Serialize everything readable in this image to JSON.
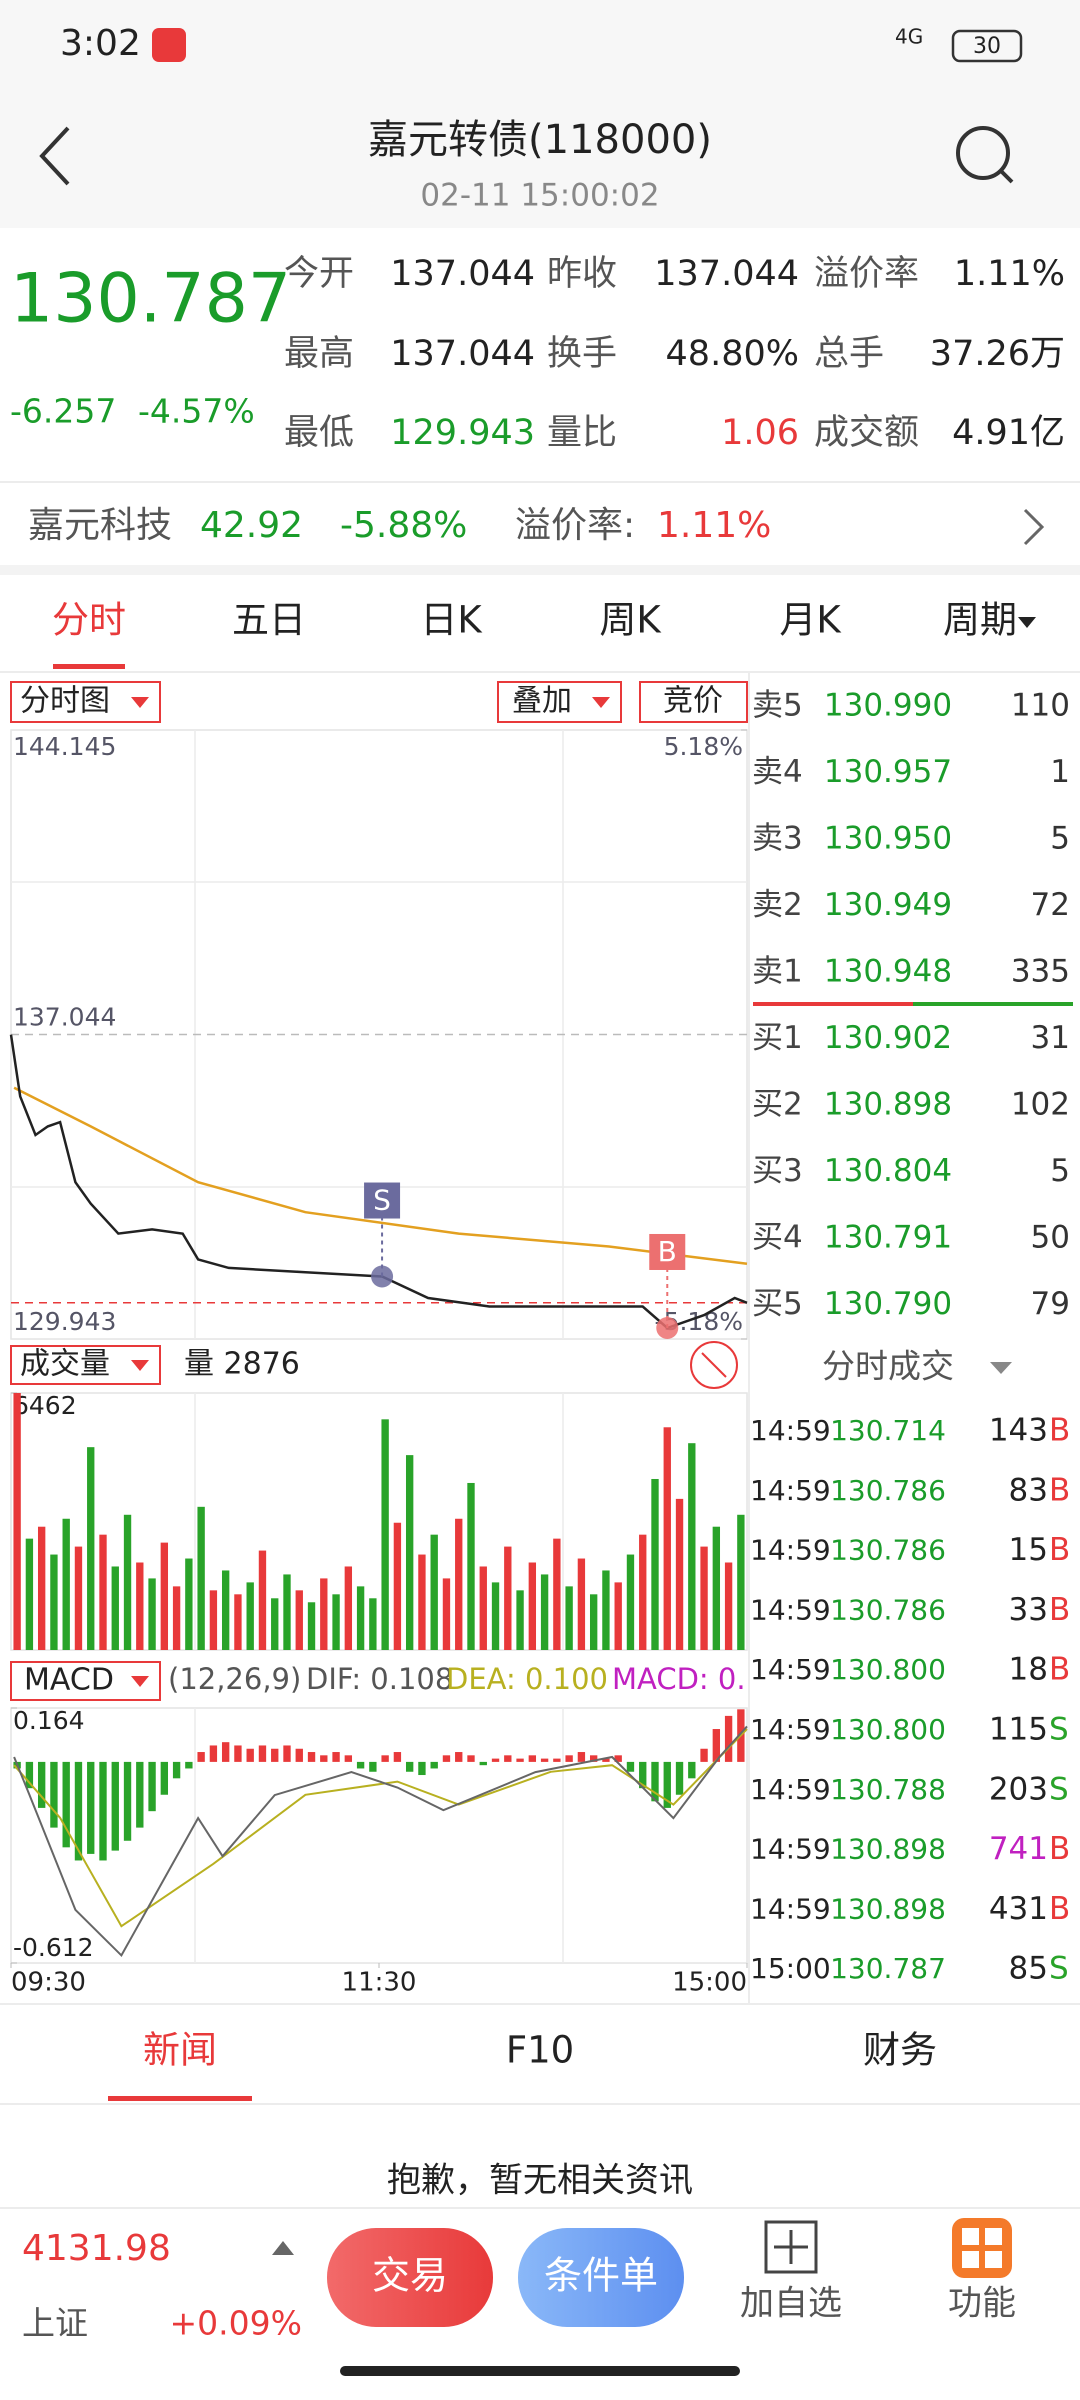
{
  "status_bar": {
    "time": "3:02",
    "network": "4G",
    "battery": "30"
  },
  "header": {
    "title": "嘉元转债(118000)",
    "subtitle": "02-11 15:00:02"
  },
  "quote": {
    "price": "130.787",
    "price_color": "#1a9c2a",
    "change": "-6.257",
    "change_pct": "-4.57%",
    "fields": [
      {
        "label": "今开",
        "value": "137.044",
        "color": "#222222"
      },
      {
        "label": "昨收",
        "value": "137.044",
        "color": "#222222"
      },
      {
        "label": "溢价率",
        "value": "1.11%",
        "color": "#222222"
      },
      {
        "label": "最高",
        "value": "137.044",
        "color": "#222222"
      },
      {
        "label": "换手",
        "value": "48.80%",
        "color": "#222222"
      },
      {
        "label": "总手",
        "value": "37.26万",
        "color": "#222222"
      },
      {
        "label": "最低",
        "value": "129.943",
        "color": "#1a9c2a"
      },
      {
        "label": "量比",
        "value": "1.06",
        "color": "#e8393a"
      },
      {
        "label": "成交额",
        "value": "4.91亿",
        "color": "#222222"
      }
    ]
  },
  "underlying": {
    "name": "嘉元科技",
    "price": "42.92",
    "change_pct": "-5.88%",
    "premium_label": "溢价率:",
    "premium": "1.11%"
  },
  "tabs": [
    "分时",
    "五日",
    "日K",
    "周K",
    "月K",
    "周期"
  ],
  "chart_controls": {
    "mode": "分时图",
    "overlay": "叠加",
    "auction": "竞价",
    "volume_label": "成交量",
    "volume_current": "量 2876",
    "macd_label": "MACD",
    "macd_params": "(12,26,9)",
    "dif": "DIF: 0.108",
    "dea": "DEA: 0.100",
    "macd": "MACD: 0."
  },
  "chart_data": [
    {
      "type": "line",
      "color": "#222222",
      "x": [
        0,
        3,
        8,
        12,
        16,
        21,
        26,
        35,
        46,
        56,
        61,
        71,
        96,
        121,
        136,
        156,
        181,
        206,
        214,
        226,
        236,
        240
      ],
      "values": [
        137.04,
        135.6,
        134.7,
        134.9,
        135.0,
        133.6,
        133.1,
        132.4,
        132.5,
        132.4,
        131.8,
        131.6,
        131.5,
        131.4,
        130.9,
        130.7,
        130.7,
        130.7,
        130.2,
        130.5,
        130.9,
        130.787
      ],
      "average": {
        "color": "#e3a020",
        "x": [
          1,
          26,
          61,
          96,
          146,
          195,
          240
        ],
        "values": [
          135.8,
          134.9,
          133.6,
          132.9,
          132.4,
          132.1,
          131.7
        ]
      },
      "reference_lines": [
        {
          "value": 130.787,
          "color": "#e8393a"
        }
      ],
      "annotations": [
        {
          "text": "S",
          "x": 121,
          "y": 131.4,
          "color": "#6b6b9e"
        },
        {
          "text": "B",
          "x": 214,
          "y": 130.2,
          "color": "#ec7070"
        }
      ],
      "xlim": [
        0,
        240
      ],
      "ylim": [
        129.943,
        144.145
      ],
      "yticks": [
        129.943,
        137.044,
        144.145
      ],
      "y2lim": [
        -5.18,
        5.18
      ],
      "y2ticks": [
        {
          "value": -5.18,
          "label": "-5.18%"
        },
        {
          "value": 5.18,
          "label": "5.18%"
        }
      ]
    },
    {
      "type": "bar",
      "x": [
        2,
        6,
        10,
        14,
        18,
        22,
        26,
        30,
        34,
        38,
        42,
        46,
        50,
        54,
        58,
        62,
        66,
        70,
        74,
        78,
        82,
        86,
        90,
        94,
        98,
        102,
        106,
        110,
        114,
        118,
        122,
        126,
        130,
        134,
        138,
        142,
        146,
        150,
        154,
        158,
        162,
        166,
        170,
        174,
        178,
        182,
        186,
        190,
        194,
        198,
        202,
        206,
        210,
        214,
        218,
        222,
        226,
        230,
        234,
        238
      ],
      "values": [
        6462,
        2800,
        3100,
        2400,
        3300,
        2600,
        5100,
        2900,
        2100,
        3400,
        2200,
        1800,
        2700,
        1600,
        2300,
        3600,
        1500,
        2000,
        1400,
        1700,
        2500,
        1300,
        1900,
        1500,
        1200,
        1800,
        1400,
        2100,
        1600,
        1300,
        5800,
        3200,
        4900,
        2400,
        2900,
        1800,
        3300,
        4200,
        2100,
        1700,
        2600,
        1500,
        2200,
        1900,
        2800,
        1600,
        2300,
        1400,
        2000,
        1700,
        2400,
        2900,
        4300,
        5600,
        3800,
        5200,
        2600,
        3100,
        2200,
        3400
      ],
      "colors": [
        "#e8393a",
        "#29a329",
        "#e8393a",
        "#29a329",
        "#29a329",
        "#e8393a",
        "#29a329",
        "#e8393a",
        "#29a329",
        "#29a329",
        "#e8393a",
        "#29a329",
        "#e8393a",
        "#e8393a",
        "#29a329",
        "#29a329",
        "#e8393a",
        "#29a329",
        "#e8393a",
        "#29a329",
        "#e8393a",
        "#29a329",
        "#29a329",
        "#e8393a",
        "#29a329",
        "#e8393a",
        "#29a329",
        "#e8393a",
        "#29a329",
        "#29a329",
        "#29a329",
        "#e8393a",
        "#29a329",
        "#e8393a",
        "#29a329",
        "#e8393a",
        "#e8393a",
        "#29a329",
        "#e8393a",
        "#29a329",
        "#e8393a",
        "#29a329",
        "#e8393a",
        "#29a329",
        "#e8393a",
        "#29a329",
        "#e8393a",
        "#29a329",
        "#29a329",
        "#e8393a",
        "#29a329",
        "#e8393a",
        "#29a329",
        "#e8393a",
        "#e8393a",
        "#29a329",
        "#e8393a",
        "#29a329",
        "#e8393a",
        "#29a329"
      ],
      "xlim": [
        0,
        240
      ],
      "ylim": [
        0,
        6462
      ],
      "yticks": [
        6462
      ]
    },
    {
      "type": "macd",
      "up_color": "#e8393a",
      "down_color": "#29a329",
      "x": [
        2,
        6,
        10,
        14,
        18,
        22,
        26,
        30,
        34,
        38,
        42,
        46,
        50,
        54,
        58,
        62,
        66,
        70,
        74,
        78,
        82,
        86,
        90,
        94,
        98,
        102,
        106,
        110,
        114,
        118,
        122,
        126,
        130,
        134,
        138,
        142,
        146,
        150,
        154,
        158,
        162,
        166,
        170,
        174,
        178,
        182,
        186,
        190,
        194,
        198,
        202,
        206,
        210,
        214,
        218,
        222,
        226,
        230,
        234,
        238
      ],
      "values": [
        -0.02,
        -0.08,
        -0.14,
        -0.2,
        -0.26,
        -0.3,
        -0.28,
        -0.3,
        -0.27,
        -0.24,
        -0.2,
        -0.15,
        -0.1,
        -0.05,
        -0.02,
        0.03,
        0.05,
        0.06,
        0.05,
        0.04,
        0.05,
        0.04,
        0.05,
        0.04,
        0.03,
        0.02,
        0.03,
        0.02,
        -0.02,
        -0.03,
        0.02,
        0.03,
        -0.03,
        -0.04,
        -0.02,
        0.02,
        0.03,
        0.02,
        -0.01,
        0.01,
        0.02,
        0.01,
        0.02,
        0.01,
        0.01,
        0.02,
        0.03,
        0.02,
        0.01,
        0.02,
        -0.03,
        -0.08,
        -0.12,
        -0.14,
        -0.1,
        -0.05,
        0.04,
        0.1,
        0.14,
        0.16
      ],
      "dif": {
        "color": "#666666",
        "x": [
          1,
          6,
          21,
          36,
          61,
          69,
          86,
          111,
          126,
          141,
          171,
          196,
          216,
          231,
          240
        ],
        "values": [
          0.015,
          -0.1,
          -0.45,
          -0.589,
          -0.171,
          -0.287,
          -0.101,
          -0.031,
          -0.078,
          -0.147,
          -0.031,
          0.015,
          -0.171,
          0.015,
          0.108
        ]
      },
      "dea": {
        "color": "#b8b020",
        "x": [
          1,
          16,
          36,
          66,
          96,
          126,
          146,
          176,
          196,
          216,
          240
        ],
        "values": [
          -0.01,
          -0.17,
          -0.5,
          -0.31,
          -0.1,
          -0.06,
          -0.13,
          -0.03,
          -0.01,
          -0.13,
          0.1
        ]
      },
      "xlim": [
        0,
        240
      ],
      "ylim": [
        -0.612,
        0.164
      ],
      "yticks": [
        -0.612,
        0.164
      ],
      "xticks": [
        {
          "value": 0,
          "label": "09:30"
        },
        {
          "value": 120,
          "label": "11:30"
        },
        {
          "value": 240,
          "label": "15:00"
        }
      ]
    }
  ],
  "order_book": {
    "asks": [
      {
        "label": "卖5",
        "price": "130.990",
        "volume": "110"
      },
      {
        "label": "卖4",
        "price": "130.957",
        "volume": "1"
      },
      {
        "label": "卖3",
        "price": "130.950",
        "volume": "5"
      },
      {
        "label": "卖2",
        "price": "130.949",
        "volume": "72"
      },
      {
        "label": "卖1",
        "price": "130.948",
        "volume": "335"
      }
    ],
    "bids": [
      {
        "label": "买1",
        "price": "130.902",
        "volume": "31"
      },
      {
        "label": "买2",
        "price": "130.898",
        "volume": "102"
      },
      {
        "label": "买3",
        "price": "130.804",
        "volume": "5"
      },
      {
        "label": "买4",
        "price": "130.791",
        "volume": "50"
      },
      {
        "label": "买5",
        "price": "130.790",
        "volume": "79"
      }
    ]
  },
  "trades": {
    "title": "分时成交",
    "side_colors": {
      "B": "#e8393a",
      "S": "#29a329"
    },
    "rows": [
      {
        "time": "14:59",
        "price": "130.714",
        "volume": "143",
        "volume_color": "#222222",
        "side": "B"
      },
      {
        "time": "14:59",
        "price": "130.786",
        "volume": "83",
        "volume_color": "#222222",
        "side": "B"
      },
      {
        "time": "14:59",
        "price": "130.786",
        "volume": "15",
        "volume_color": "#222222",
        "side": "B"
      },
      {
        "time": "14:59",
        "price": "130.786",
        "volume": "33",
        "volume_color": "#222222",
        "side": "B"
      },
      {
        "time": "14:59",
        "price": "130.800",
        "volume": "18",
        "volume_color": "#222222",
        "side": "B"
      },
      {
        "time": "14:59",
        "price": "130.800",
        "volume": "115",
        "volume_color": "#222222",
        "side": "S"
      },
      {
        "time": "14:59",
        "price": "130.788",
        "volume": "203",
        "volume_color": "#222222",
        "side": "S"
      },
      {
        "time": "14:59",
        "price": "130.898",
        "volume": "741",
        "volume_color": "#c020c0",
        "side": "B"
      },
      {
        "time": "14:59",
        "price": "130.898",
        "volume": "431",
        "volume_color": "#222222",
        "side": "B"
      },
      {
        "time": "15:00",
        "price": "130.787",
        "volume": "85",
        "volume_color": "#222222",
        "side": "S"
      }
    ]
  },
  "bottom_tabs": [
    "新闻",
    "F10",
    "财务"
  ],
  "empty_message": "抱歉，暂无相关资讯",
  "bottom_bar": {
    "index_value": "4131.98",
    "index_name": "上证",
    "index_change": "+0.09%",
    "trade": "交易",
    "conditional": "条件单",
    "watchlist": "加自选",
    "functions": "功能"
  }
}
